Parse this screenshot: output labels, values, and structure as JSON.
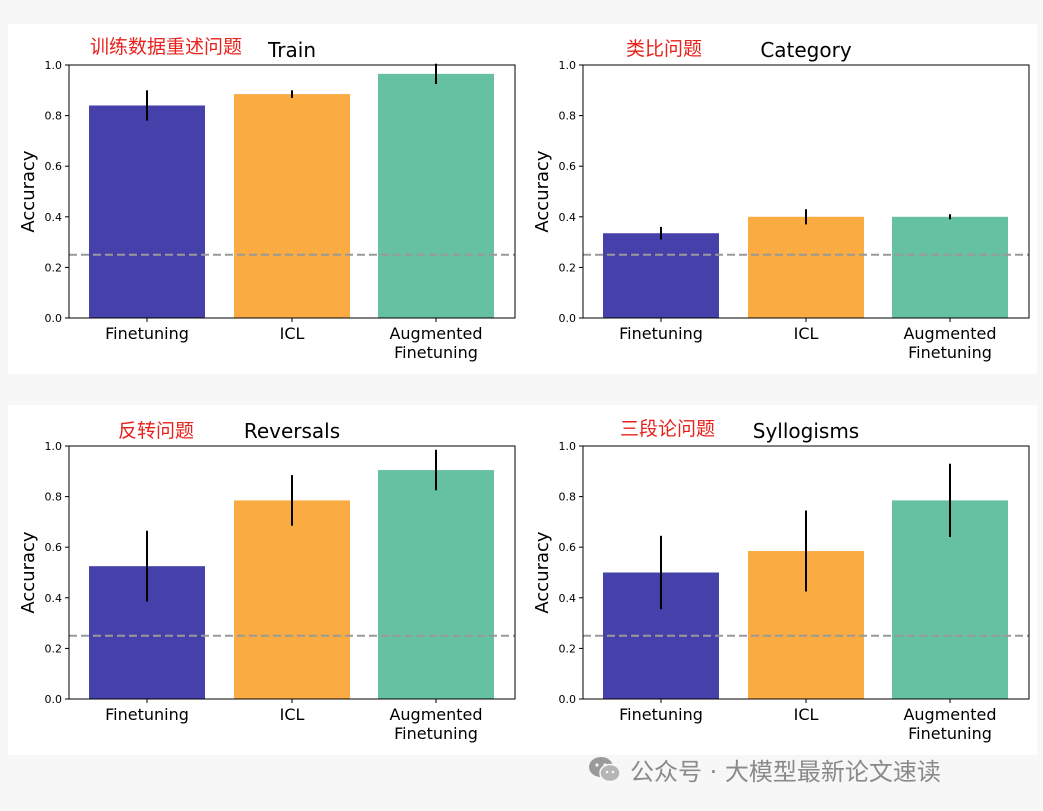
{
  "chart_data": [
    {
      "type": "bar",
      "title": "Train",
      "annotation": "训练数据重述问题",
      "ylabel": "Accuracy",
      "ylim": [
        0,
        1.0
      ],
      "yticks": [
        "0.0",
        "0.2",
        "0.4",
        "0.6",
        "0.8",
        "1.0"
      ],
      "categories": [
        "Finetuning",
        "ICL",
        "Augmented\nFinetuning"
      ],
      "values": [
        0.84,
        0.885,
        0.965
      ],
      "error": [
        0.06,
        0.015,
        0.04
      ],
      "colors": [
        "#4640aa",
        "#faab42",
        "#66c1a3"
      ],
      "chance_line": 0.25
    },
    {
      "type": "bar",
      "title": "Category",
      "annotation": "类比问题",
      "ylabel": "Accuracy",
      "ylim": [
        0,
        1.0
      ],
      "yticks": [
        "0.0",
        "0.2",
        "0.4",
        "0.6",
        "0.8",
        "1.0"
      ],
      "categories": [
        "Finetuning",
        "ICL",
        "Augmented\nFinetuning"
      ],
      "values": [
        0.335,
        0.4,
        0.4
      ],
      "error": [
        0.025,
        0.03,
        0.01
      ],
      "colors": [
        "#4640aa",
        "#faab42",
        "#66c1a3"
      ],
      "chance_line": 0.25
    },
    {
      "type": "bar",
      "title": "Reversals",
      "annotation": "反转问题",
      "ylabel": "Accuracy",
      "ylim": [
        0,
        1.0
      ],
      "yticks": [
        "0.0",
        "0.2",
        "0.4",
        "0.6",
        "0.8",
        "1.0"
      ],
      "categories": [
        "Finetuning",
        "ICL",
        "Augmented\nFinetuning"
      ],
      "values": [
        0.525,
        0.785,
        0.905
      ],
      "error": [
        0.14,
        0.1,
        0.08
      ],
      "colors": [
        "#4640aa",
        "#faab42",
        "#66c1a3"
      ],
      "chance_line": 0.25
    },
    {
      "type": "bar",
      "title": "Syllogisms",
      "annotation": "三段论问题",
      "ylabel": "Accuracy",
      "ylim": [
        0,
        1.0
      ],
      "yticks": [
        "0.0",
        "0.2",
        "0.4",
        "0.6",
        "0.8",
        "1.0"
      ],
      "categories": [
        "Finetuning",
        "ICL",
        "Augmented\nFinetuning"
      ],
      "values": [
        0.5,
        0.585,
        0.785
      ],
      "error": [
        0.145,
        0.16,
        0.145
      ],
      "colors": [
        "#4640aa",
        "#faab42",
        "#66c1a3"
      ],
      "chance_line": 0.25
    }
  ],
  "watermark": {
    "text": "公众号 · 大模型最新论文速读",
    "icon": "wechat-icon"
  }
}
